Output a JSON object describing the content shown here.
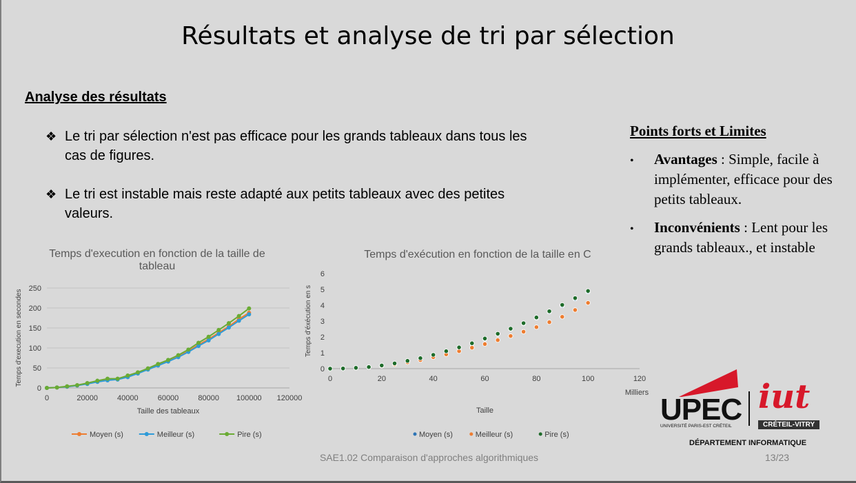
{
  "slide": {
    "title": "Résultats et analyse de tri par sélection",
    "analyse_heading": "Analyse des résultats",
    "bullets": [
      "Le tri par sélection n'est pas efficace pour les grands tableaux dans tous les cas de figures.",
      "Le tri est instable mais reste adapté aux petits tableaux avec des petites valeurs."
    ],
    "bullet_icon": "four-diamond-bullet-icon",
    "points_forts": {
      "heading": "Points forts et Limites",
      "items": [
        {
          "label": "Avantages",
          "text": " : Simple, facile à implémenter, efficace pour des petits tableaux."
        },
        {
          "label": "Inconvénients",
          "text": " : Lent pour les grands tableaux., et instable"
        }
      ]
    },
    "footer": "SAE1.02 Comparaison d'approches algorithmiques",
    "page_number": "13/23",
    "logo": {
      "upec": "UPEC",
      "upec_sub": "UNIVERSITÉ PARIS-EST CRÉTEIL",
      "iut": "iut",
      "creteil": "CRÉTEIL-VITRY",
      "department": "DÉPARTEMENT INFORMATIQUE"
    },
    "colors": {
      "background": "#d9d9d9",
      "moyen": "#ed7d31",
      "meilleur": "#2e9bd8",
      "pire": "#6aab34",
      "pire_c": "#1e6b2a",
      "logo_red": "#d7182a"
    }
  },
  "chart_data": [
    {
      "type": "scatter",
      "title": "Temps d'execution en fonction de la taille de tableau",
      "xlabel": "Taille des tableaux",
      "ylabel": "Temps d'execution en secondes",
      "xlim": [
        0,
        120000
      ],
      "ylim": [
        0,
        250
      ],
      "x_ticks": [
        "0",
        "20000",
        "40000",
        "60000",
        "80000",
        "100000",
        "120000"
      ],
      "y_ticks": [
        "0",
        "50",
        "100",
        "150",
        "200",
        "250"
      ],
      "legend_position": "bottom",
      "grid": true,
      "series": [
        {
          "name": "Moyen (s)",
          "color": "#ed7d31",
          "x": [
            0,
            5000,
            10000,
            15000,
            20000,
            25000,
            30000,
            35000,
            40000,
            45000,
            50000,
            55000,
            60000,
            65000,
            70000,
            75000,
            80000,
            85000,
            90000,
            95000,
            100000
          ],
          "y": [
            0,
            1,
            3,
            6,
            11,
            16,
            20,
            22,
            28,
            37,
            47,
            57,
            67,
            78,
            92,
            108,
            122,
            138,
            154,
            172,
            188
          ]
        },
        {
          "name": "Meilleur (s)",
          "color": "#2e9bd8",
          "x": [
            0,
            5000,
            10000,
            15000,
            20000,
            25000,
            30000,
            35000,
            40000,
            45000,
            50000,
            55000,
            60000,
            65000,
            70000,
            75000,
            80000,
            85000,
            90000,
            95000,
            100000
          ],
          "y": [
            0,
            1,
            3,
            6,
            10,
            15,
            19,
            21,
            27,
            36,
            46,
            56,
            66,
            77,
            90,
            105,
            119,
            135,
            151,
            168,
            184
          ]
        },
        {
          "name": "Pire (s)",
          "color": "#6aab34",
          "x": [
            0,
            5000,
            10000,
            15000,
            20000,
            25000,
            30000,
            35000,
            40000,
            45000,
            50000,
            55000,
            60000,
            65000,
            70000,
            75000,
            80000,
            85000,
            90000,
            95000,
            100000
          ],
          "y": [
            0,
            1,
            4,
            7,
            12,
            18,
            23,
            23,
            31,
            39,
            49,
            60,
            70,
            82,
            96,
            113,
            128,
            145,
            162,
            180,
            199
          ]
        }
      ]
    },
    {
      "type": "scatter",
      "title": "Temps d'exécution en fonction de la taille en C",
      "xlabel": "Taille",
      "x_unit_label": "Milliers",
      "ylabel": "Temps d'éxécution en s",
      "xlim": [
        0,
        120
      ],
      "ylim": [
        0,
        6
      ],
      "x_ticks": [
        "0",
        "20",
        "40",
        "60",
        "80",
        "100",
        "120"
      ],
      "y_ticks": [
        "0",
        "1",
        "2",
        "3",
        "4",
        "5",
        "6"
      ],
      "legend_position": "bottom",
      "grid": false,
      "series": [
        {
          "name": "Moyen (s)",
          "color": "#2e75b6",
          "x": [
            0,
            5,
            10,
            15,
            20,
            25,
            30,
            35,
            40,
            45,
            50,
            55,
            60,
            65,
            70,
            75,
            80,
            85,
            90,
            95,
            100
          ],
          "y": [
            0,
            0.01,
            0.05,
            0.1,
            0.2,
            0.32,
            0.48,
            0.65,
            0.86,
            1.08,
            1.32,
            1.58,
            1.87,
            2.18,
            2.5,
            2.84,
            3.2,
            3.58,
            3.97,
            4.4,
            4.85
          ]
        },
        {
          "name": "Meilleur (s)",
          "color": "#ed7d31",
          "x": [
            0,
            5,
            10,
            15,
            20,
            25,
            30,
            35,
            40,
            45,
            50,
            55,
            60,
            65,
            70,
            75,
            80,
            85,
            90,
            95,
            100
          ],
          "y": [
            0,
            0.01,
            0.04,
            0.09,
            0.17,
            0.27,
            0.4,
            0.54,
            0.72,
            0.9,
            1.1,
            1.32,
            1.55,
            1.8,
            2.06,
            2.33,
            2.62,
            2.93,
            3.27,
            3.7,
            4.15
          ]
        },
        {
          "name": "Pire (s)",
          "color": "#1e6b2a",
          "x": [
            0,
            5,
            10,
            15,
            20,
            25,
            30,
            35,
            40,
            45,
            50,
            55,
            60,
            65,
            70,
            75,
            80,
            85,
            90,
            95,
            100
          ],
          "y": [
            0,
            0.01,
            0.05,
            0.1,
            0.2,
            0.33,
            0.49,
            0.66,
            0.87,
            1.1,
            1.34,
            1.6,
            1.9,
            2.2,
            2.52,
            2.87,
            3.23,
            3.62,
            4.02,
            4.45,
            4.9
          ]
        }
      ]
    }
  ]
}
